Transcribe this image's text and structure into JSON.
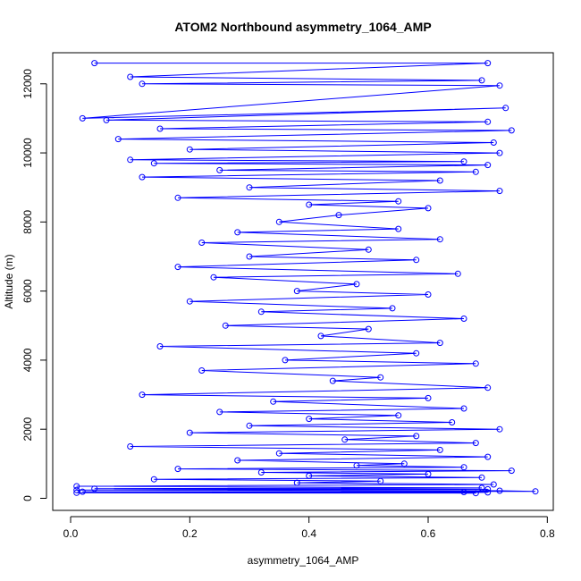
{
  "chart_data": {
    "type": "scatter",
    "title": "ATOM2 Northbound asymmetry_1064_AMP",
    "xlabel": "asymmetry_1064_AMP",
    "ylabel": "Altitude (m)",
    "xlim": [
      -0.03,
      0.81
    ],
    "ylim": [
      -350,
      12900
    ],
    "xticks": [
      0.0,
      0.2,
      0.4,
      0.6,
      0.8
    ],
    "xtick_labels": [
      "0.0",
      "0.2",
      "0.4",
      "0.6",
      "0.8"
    ],
    "yticks": [
      0,
      2000,
      4000,
      6000,
      8000,
      10000,
      12000
    ],
    "ytick_labels": [
      "0",
      "2000",
      "4000",
      "6000",
      "8000",
      "10000",
      "12000"
    ],
    "grid": false,
    "legend": "none",
    "style": "points connected by lines (open circles)",
    "series_color": "#0000ff",
    "series": [
      {
        "values_note_free_sample": true,
        "x": [
          0.04,
          0.7,
          0.1,
          0.69,
          0.12,
          0.72,
          0.02,
          0.73,
          0.06,
          0.7,
          0.15,
          0.74,
          0.08,
          0.71,
          0.2,
          0.72,
          0.1,
          0.66,
          0.14,
          0.7,
          0.25,
          0.68,
          0.12,
          0.62,
          0.3,
          0.72,
          0.18,
          0.55,
          0.4,
          0.6,
          0.45,
          0.35,
          0.55,
          0.28,
          0.62,
          0.22,
          0.5,
          0.3,
          0.58,
          0.18,
          0.65,
          0.24,
          0.48,
          0.38,
          0.6,
          0.2,
          0.54,
          0.32,
          0.66,
          0.26,
          0.5,
          0.42,
          0.62,
          0.15,
          0.58,
          0.36,
          0.68,
          0.22,
          0.52,
          0.44,
          0.7,
          0.12,
          0.6,
          0.34,
          0.66,
          0.25,
          0.55,
          0.4,
          0.64,
          0.3,
          0.72,
          0.2,
          0.58,
          0.46,
          0.68,
          0.1,
          0.62,
          0.35,
          0.7,
          0.28,
          0.56,
          0.48,
          0.66,
          0.18,
          0.74,
          0.32,
          0.6,
          0.4,
          0.69,
          0.14,
          0.52,
          0.38,
          0.71,
          0.01,
          0.69,
          0.04,
          0.7,
          0.01,
          0.72,
          0.78,
          0.02,
          0.66,
          0.7,
          0.01,
          0.68
        ],
        "y": [
          12600,
          12600,
          12200,
          12100,
          12000,
          11950,
          11000,
          11300,
          10950,
          10900,
          10700,
          10650,
          10400,
          10300,
          10100,
          10000,
          9800,
          9750,
          9700,
          9650,
          9500,
          9450,
          9300,
          9200,
          9000,
          8900,
          8700,
          8600,
          8500,
          8400,
          8200,
          8000,
          7800,
          7700,
          7500,
          7400,
          7200,
          7000,
          6900,
          6700,
          6500,
          6400,
          6200,
          6000,
          5900,
          5700,
          5500,
          5400,
          5200,
          5000,
          4900,
          4700,
          4500,
          4400,
          4200,
          4000,
          3900,
          3700,
          3500,
          3400,
          3200,
          3000,
          2900,
          2800,
          2600,
          2500,
          2400,
          2300,
          2200,
          2100,
          2000,
          1900,
          1800,
          1700,
          1600,
          1500,
          1400,
          1300,
          1200,
          1100,
          1000,
          950,
          900,
          850,
          800,
          750,
          700,
          650,
          600,
          550,
          500,
          450,
          400,
          350,
          300,
          280,
          260,
          240,
          220,
          200,
          190,
          180,
          170,
          160,
          150
        ]
      }
    ]
  }
}
